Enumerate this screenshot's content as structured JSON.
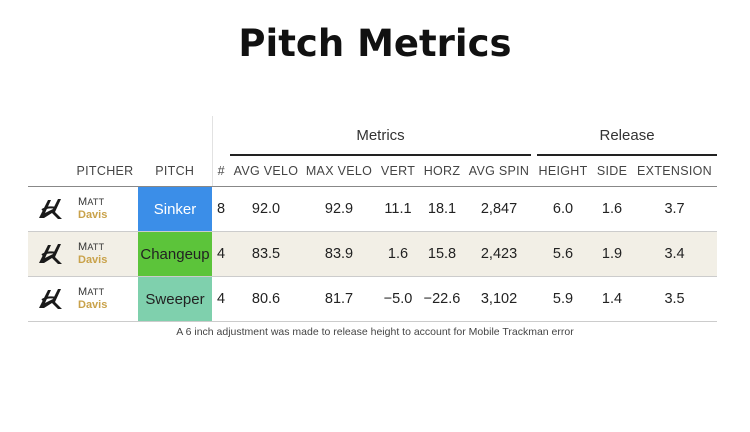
{
  "title": "Pitch Metrics",
  "groups": {
    "metrics": "Metrics",
    "release": "Release"
  },
  "headers": [
    "PITCHER",
    "PITCH",
    "#",
    "AVG VELO",
    "MAX VELO",
    "VERT",
    "HORZ",
    "AVG SPIN",
    "HEIGHT",
    "SIDE",
    "EXTENSION"
  ],
  "rows": [
    {
      "first": "Matt",
      "last": "Davis",
      "pitch": "Sinker",
      "pitch_color": "#3b8ee8",
      "count": "8",
      "avg_velo": "92.0",
      "max_velo": "92.9",
      "vert": "11.1",
      "horz": "18.1",
      "avg_spin": "2,847",
      "height": "6.0",
      "side": "1.6",
      "extension": "3.7"
    },
    {
      "first": "Matt",
      "last": "Davis",
      "pitch": "Changeup",
      "pitch_color": "#5cc43a",
      "count": "4",
      "avg_velo": "83.5",
      "max_velo": "83.9",
      "vert": "1.6",
      "horz": "15.8",
      "avg_spin": "2,423",
      "height": "5.6",
      "side": "1.9",
      "extension": "3.4"
    },
    {
      "first": "Matt",
      "last": "Davis",
      "pitch": "Sweeper",
      "pitch_color": "#7fd0ad",
      "count": "4",
      "avg_velo": "80.6",
      "max_velo": "81.7",
      "vert": "−5.0",
      "horz": "−22.6",
      "avg_spin": "3,102",
      "height": "5.9",
      "side": "1.4",
      "extension": "3.5"
    }
  ],
  "note": "A 6 inch adjustment was made to release height to account for Mobile Trackman error",
  "icons": {
    "team_logo": "team-logo-icon"
  }
}
